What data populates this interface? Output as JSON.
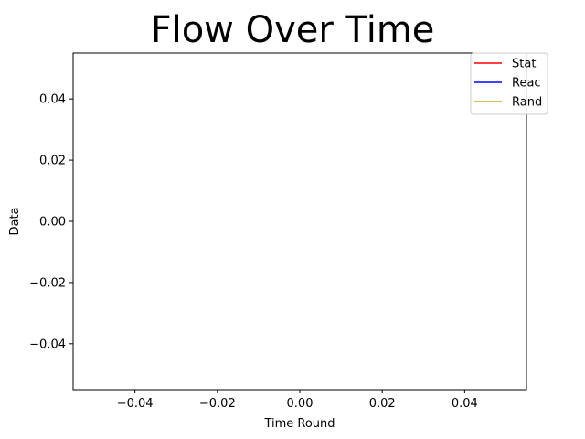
{
  "chart_data": {
    "type": "line",
    "title": "Flow Over Time",
    "xlabel": "Time Round",
    "ylabel": "Data",
    "xlim": [
      -0.055,
      0.055
    ],
    "ylim": [
      -0.055,
      0.055
    ],
    "x_ticks": [
      -0.04,
      -0.02,
      0.0,
      0.02,
      0.04
    ],
    "x_tick_labels": [
      "−0.04",
      "−0.02",
      "0.00",
      "0.02",
      "0.04"
    ],
    "y_ticks": [
      -0.04,
      -0.02,
      0.0,
      0.02,
      0.04
    ],
    "y_tick_labels": [
      "−0.04",
      "−0.02",
      "0.00",
      "0.02",
      "0.04"
    ],
    "grid": false,
    "legend_position": "top-right",
    "series": [
      {
        "name": "Stat",
        "color": "#ff0000",
        "x": [],
        "y": []
      },
      {
        "name": "Reac",
        "color": "#0000ff",
        "x": [],
        "y": []
      },
      {
        "name": "Rand",
        "color": "#ccaa00",
        "x": [],
        "y": []
      }
    ]
  }
}
